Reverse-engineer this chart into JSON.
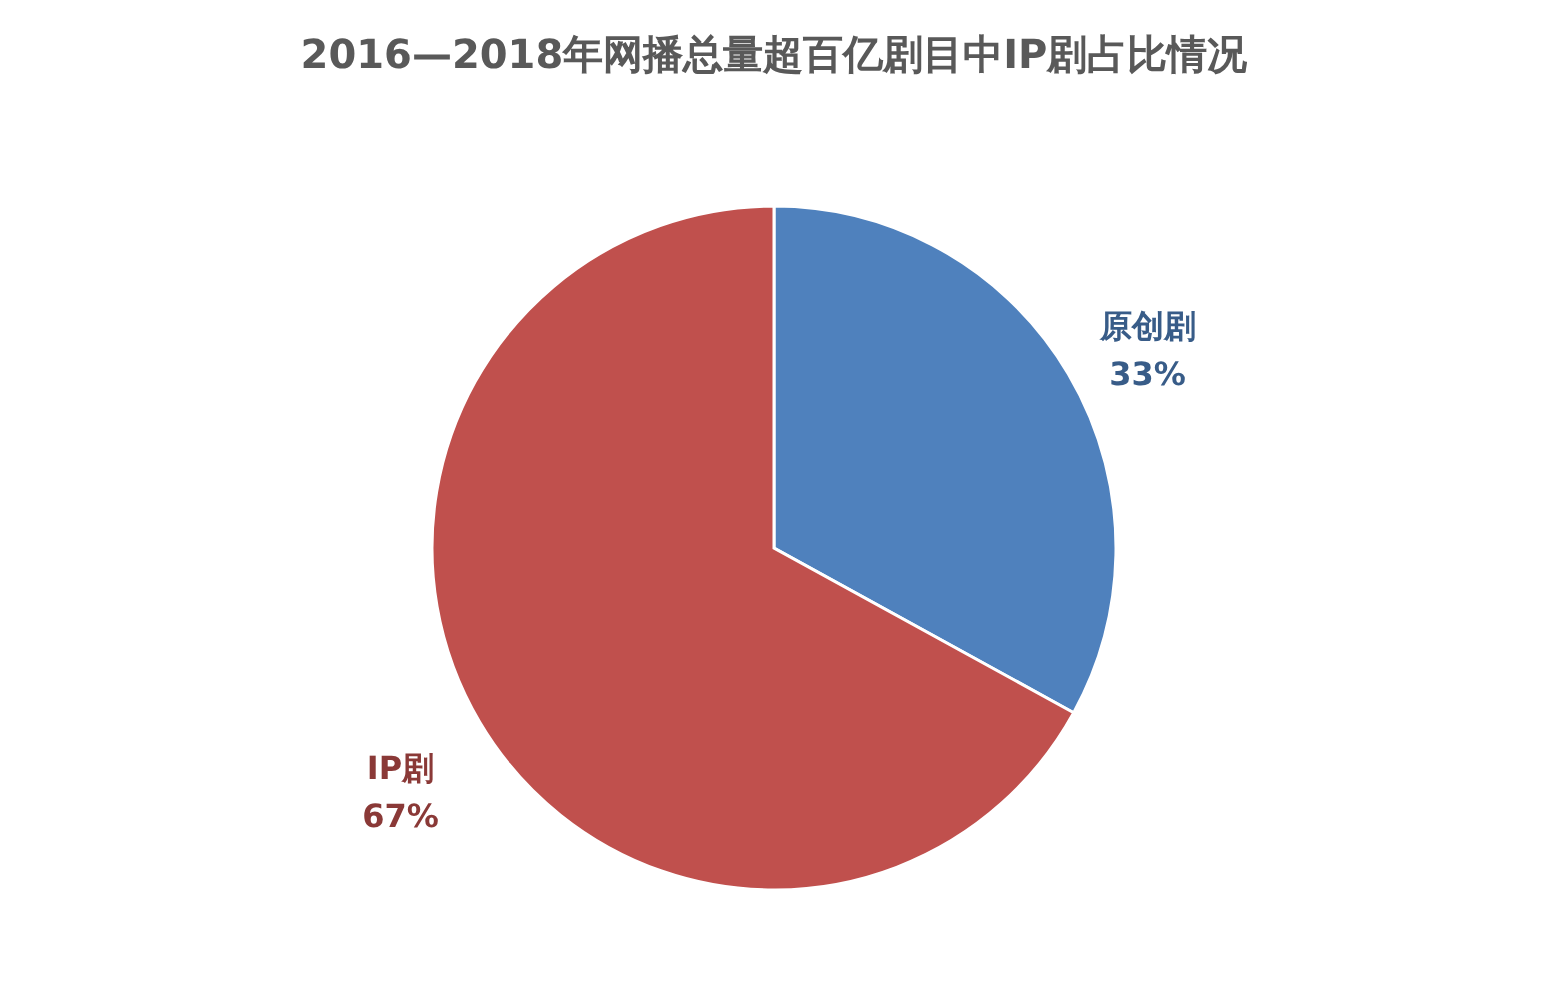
{
  "chart_data": {
    "type": "pie",
    "title": "2016—2018年网播总量超百亿剧目中IP剧占比情况",
    "categories": [
      "原创剧",
      "IP剧"
    ],
    "values": [
      33,
      67
    ],
    "colors": [
      "#4f81bd",
      "#c0504d"
    ],
    "value_labels": [
      "33%",
      "67%"
    ]
  }
}
